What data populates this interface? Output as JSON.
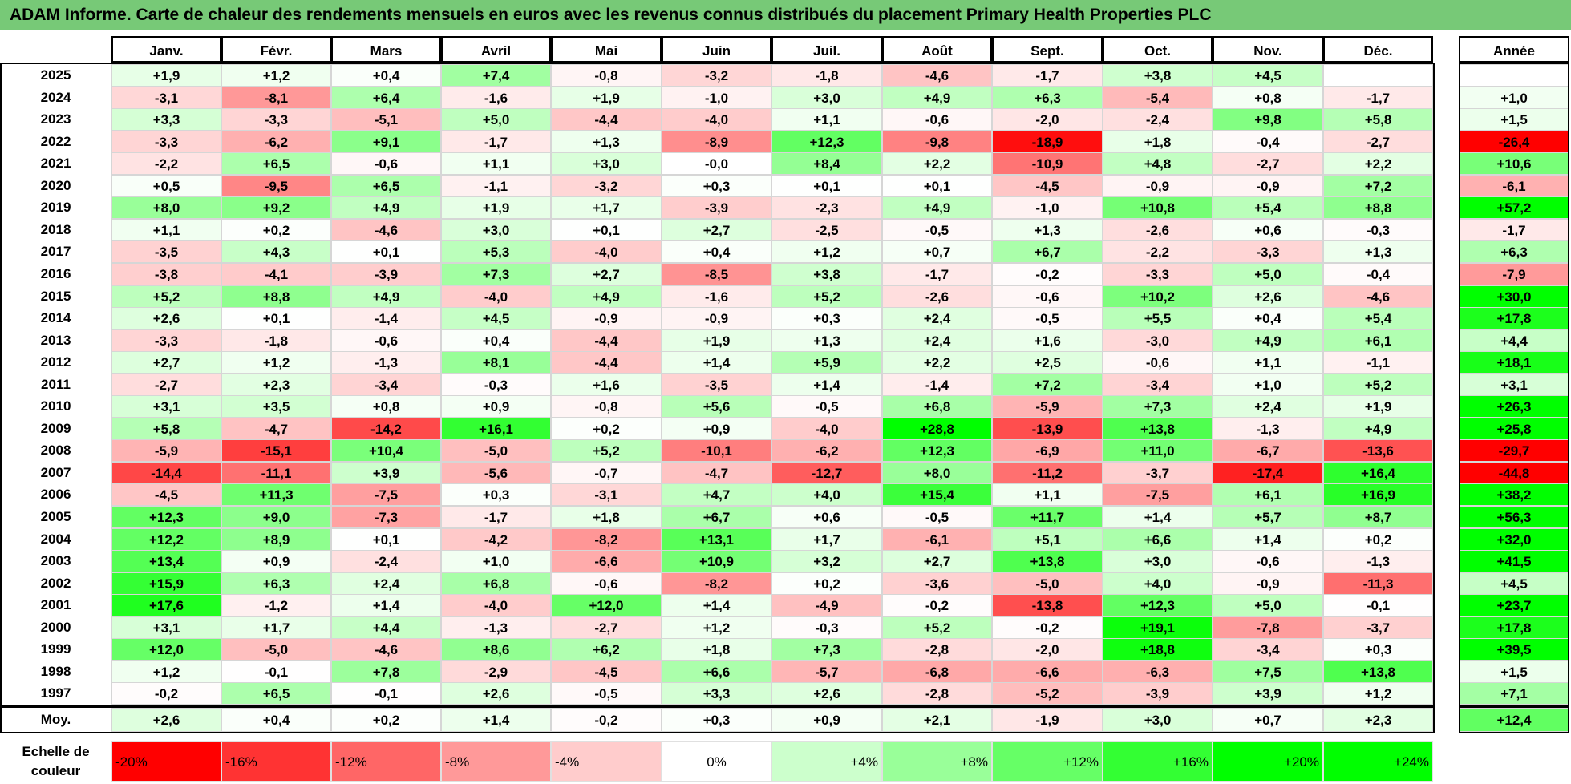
{
  "title": "ADAM Informe. Carte de chaleur des rendements mensuels en euros avec les revenus connus distribués du placement Primary Health Properties PLC",
  "chart_data": {
    "type": "heatmap",
    "months": [
      "Janv.",
      "Févr.",
      "Mars",
      "Avril",
      "Mai",
      "Juin",
      "Juil.",
      "Août",
      "Sept.",
      "Oct.",
      "Nov.",
      "Déc."
    ],
    "year_header": "Année",
    "avg_label": "Moy.",
    "rows": [
      {
        "year": "2025",
        "values": [
          "+1,9",
          "+1,2",
          "+0,4",
          "+7,4",
          "-0,8",
          "-3,2",
          "-1,8",
          "-4,6",
          "-1,7",
          "+3,8",
          "+4,5",
          ""
        ],
        "annual": ""
      },
      {
        "year": "2024",
        "values": [
          "-3,1",
          "-8,1",
          "+6,4",
          "-1,6",
          "+1,9",
          "-1,0",
          "+3,0",
          "+4,9",
          "+6,3",
          "-5,4",
          "+0,8",
          "-1,7"
        ],
        "annual": "+1,0"
      },
      {
        "year": "2023",
        "values": [
          "+3,3",
          "-3,3",
          "-5,1",
          "+5,0",
          "-4,4",
          "-4,0",
          "+1,1",
          "-0,6",
          "-2,0",
          "-2,4",
          "+9,8",
          "+5,8"
        ],
        "annual": "+1,5"
      },
      {
        "year": "2022",
        "values": [
          "-3,3",
          "-6,2",
          "+9,1",
          "-1,7",
          "+1,3",
          "-8,9",
          "+12,3",
          "-9,8",
          "-18,9",
          "+1,8",
          "-0,4",
          "-2,7"
        ],
        "annual": "-26,4"
      },
      {
        "year": "2021",
        "values": [
          "-2,2",
          "+6,5",
          "-0,6",
          "+1,1",
          "+3,0",
          "-0,0",
          "+8,4",
          "+2,2",
          "-10,9",
          "+4,8",
          "-2,7",
          "+2,2"
        ],
        "annual": "+10,6"
      },
      {
        "year": "2020",
        "values": [
          "+0,5",
          "-9,5",
          "+6,5",
          "-1,1",
          "-3,2",
          "+0,3",
          "+0,1",
          "+0,1",
          "-4,5",
          "-0,9",
          "-0,9",
          "+7,2"
        ],
        "annual": "-6,1"
      },
      {
        "year": "2019",
        "values": [
          "+8,0",
          "+9,2",
          "+4,9",
          "+1,9",
          "+1,7",
          "-3,9",
          "-2,3",
          "+4,9",
          "-1,0",
          "+10,8",
          "+5,4",
          "+8,8"
        ],
        "annual": "+57,2"
      },
      {
        "year": "2018",
        "values": [
          "+1,1",
          "+0,2",
          "-4,6",
          "+3,0",
          "+0,1",
          "+2,7",
          "-2,5",
          "-0,5",
          "+1,3",
          "-2,6",
          "+0,6",
          "-0,3"
        ],
        "annual": "-1,7"
      },
      {
        "year": "2017",
        "values": [
          "-3,5",
          "+4,3",
          "+0,1",
          "+5,3",
          "-4,0",
          "+0,4",
          "+1,2",
          "+0,7",
          "+6,7",
          "-2,2",
          "-3,3",
          "+1,3"
        ],
        "annual": "+6,3"
      },
      {
        "year": "2016",
        "values": [
          "-3,8",
          "-4,1",
          "-3,9",
          "+7,3",
          "+2,7",
          "-8,5",
          "+3,8",
          "-1,7",
          "-0,2",
          "-3,3",
          "+5,0",
          "-0,4"
        ],
        "annual": "-7,9"
      },
      {
        "year": "2015",
        "values": [
          "+5,2",
          "+8,8",
          "+4,9",
          "-4,0",
          "+4,9",
          "-1,6",
          "+5,2",
          "-2,6",
          "-0,6",
          "+10,2",
          "+2,6",
          "-4,6"
        ],
        "annual": "+30,0"
      },
      {
        "year": "2014",
        "values": [
          "+2,6",
          "+0,1",
          "-1,4",
          "+4,5",
          "-0,9",
          "-0,9",
          "+0,3",
          "+2,4",
          "-0,5",
          "+5,5",
          "+0,4",
          "+5,4"
        ],
        "annual": "+17,8"
      },
      {
        "year": "2013",
        "values": [
          "-3,3",
          "-1,8",
          "-0,6",
          "+0,4",
          "-4,4",
          "+1,9",
          "+1,3",
          "+2,4",
          "+1,6",
          "-3,0",
          "+4,9",
          "+6,1"
        ],
        "annual": "+4,4"
      },
      {
        "year": "2012",
        "values": [
          "+2,7",
          "+1,2",
          "-1,3",
          "+8,1",
          "-4,4",
          "+1,4",
          "+5,9",
          "+2,2",
          "+2,5",
          "-0,6",
          "+1,1",
          "-1,1"
        ],
        "annual": "+18,1"
      },
      {
        "year": "2011",
        "values": [
          "-2,7",
          "+2,3",
          "-3,4",
          "-0,3",
          "+1,6",
          "-3,5",
          "+1,4",
          "-1,4",
          "+7,2",
          "-3,4",
          "+1,0",
          "+5,2"
        ],
        "annual": "+3,1"
      },
      {
        "year": "2010",
        "values": [
          "+3,1",
          "+3,5",
          "+0,8",
          "+0,9",
          "-0,8",
          "+5,6",
          "-0,5",
          "+6,8",
          "-5,9",
          "+7,3",
          "+2,4",
          "+1,9"
        ],
        "annual": "+26,3"
      },
      {
        "year": "2009",
        "values": [
          "+5,8",
          "-4,7",
          "-14,2",
          "+16,1",
          "+0,2",
          "+0,9",
          "-4,0",
          "+28,8",
          "-13,9",
          "+13,8",
          "-1,3",
          "+4,9"
        ],
        "annual": "+25,8"
      },
      {
        "year": "2008",
        "values": [
          "-5,9",
          "-15,1",
          "+10,4",
          "-5,0",
          "+5,2",
          "-10,1",
          "-6,2",
          "+12,3",
          "-6,9",
          "+11,0",
          "-6,7",
          "-13,6"
        ],
        "annual": "-29,7"
      },
      {
        "year": "2007",
        "values": [
          "-14,4",
          "-11,1",
          "+3,9",
          "-5,6",
          "-0,7",
          "-4,7",
          "-12,7",
          "+8,0",
          "-11,2",
          "-3,7",
          "-17,4",
          "+16,4"
        ],
        "annual": "-44,8"
      },
      {
        "year": "2006",
        "values": [
          "-4,5",
          "+11,3",
          "-7,5",
          "+0,3",
          "-3,1",
          "+4,7",
          "+4,0",
          "+15,4",
          "+1,1",
          "-7,5",
          "+6,1",
          "+16,9"
        ],
        "annual": "+38,2"
      },
      {
        "year": "2005",
        "values": [
          "+12,3",
          "+9,0",
          "-7,3",
          "-1,7",
          "+1,8",
          "+6,7",
          "+0,6",
          "-0,5",
          "+11,7",
          "+1,4",
          "+5,7",
          "+8,7"
        ],
        "annual": "+56,3"
      },
      {
        "year": "2004",
        "values": [
          "+12,2",
          "+8,9",
          "+0,1",
          "-4,2",
          "-8,2",
          "+13,1",
          "+1,7",
          "-6,1",
          "+5,1",
          "+6,6",
          "+1,4",
          "+0,2"
        ],
        "annual": "+32,0"
      },
      {
        "year": "2003",
        "values": [
          "+13,4",
          "+0,9",
          "-2,4",
          "+1,0",
          "-6,6",
          "+10,9",
          "+3,2",
          "+2,7",
          "+13,8",
          "+3,0",
          "-0,6",
          "-1,3"
        ],
        "annual": "+41,5"
      },
      {
        "year": "2002",
        "values": [
          "+15,9",
          "+6,3",
          "+2,4",
          "+6,8",
          "-0,6",
          "-8,2",
          "+0,2",
          "-3,6",
          "-5,0",
          "+4,0",
          "-0,9",
          "-11,3"
        ],
        "annual": "+4,5"
      },
      {
        "year": "2001",
        "values": [
          "+17,6",
          "-1,2",
          "+1,4",
          "-4,0",
          "+12,0",
          "+1,4",
          "-4,9",
          "-0,2",
          "-13,8",
          "+12,3",
          "+5,0",
          "-0,1"
        ],
        "annual": "+23,7"
      },
      {
        "year": "2000",
        "values": [
          "+3,1",
          "+1,7",
          "+4,4",
          "-1,3",
          "-2,7",
          "+1,2",
          "-0,3",
          "+5,2",
          "-0,2",
          "+19,1",
          "-7,8",
          "-3,7"
        ],
        "annual": "+17,8"
      },
      {
        "year": "1999",
        "values": [
          "+12,0",
          "-5,0",
          "-4,6",
          "+8,6",
          "+6,2",
          "+1,8",
          "+7,3",
          "-2,8",
          "-2,0",
          "+18,8",
          "-3,4",
          "+0,3"
        ],
        "annual": "+39,5"
      },
      {
        "year": "1998",
        "values": [
          "+1,2",
          "-0,1",
          "+7,8",
          "-2,9",
          "-4,5",
          "+6,6",
          "-5,7",
          "-6,8",
          "-6,6",
          "-6,3",
          "+7,5",
          "+13,8"
        ],
        "annual": "+1,5"
      },
      {
        "year": "1997",
        "values": [
          "-0,2",
          "+6,5",
          "-0,1",
          "+2,6",
          "-0,5",
          "+3,3",
          "+2,6",
          "-2,8",
          "-5,2",
          "-3,9",
          "+3,9",
          "+1,2"
        ],
        "annual": "+7,1"
      }
    ],
    "averages": {
      "values": [
        "+2,6",
        "+0,4",
        "+0,2",
        "+1,4",
        "-0,2",
        "+0,3",
        "+0,9",
        "+2,1",
        "-1,9",
        "+3,0",
        "+0,7",
        "+2,3"
      ],
      "annual": "+12,4"
    },
    "color_scale": {
      "label_line1": "Echelle de",
      "label_line2": "couleur",
      "steps": [
        {
          "label": "-20%",
          "value": -20,
          "color": "#ff0000"
        },
        {
          "label": "-16%",
          "value": -16,
          "color": "#ff3333"
        },
        {
          "label": "-12%",
          "value": -12,
          "color": "#ff6666"
        },
        {
          "label": "-8%",
          "value": -8,
          "color": "#ff9999"
        },
        {
          "label": "-4%",
          "value": -4,
          "color": "#ffcccc"
        },
        {
          "label": "0%",
          "value": 0,
          "color": "#ffffff"
        },
        {
          "label": "+4%",
          "value": 4,
          "color": "#ccffcc"
        },
        {
          "label": "+8%",
          "value": 8,
          "color": "#99ff99"
        },
        {
          "label": "+12%",
          "value": 12,
          "color": "#66ff66"
        },
        {
          "label": "+16%",
          "value": 16,
          "color": "#33ff33"
        },
        {
          "label": "+20%",
          "value": 20,
          "color": "#00ff00"
        },
        {
          "label": "+24%",
          "value": 24,
          "color": "#00ff00"
        }
      ]
    }
  }
}
